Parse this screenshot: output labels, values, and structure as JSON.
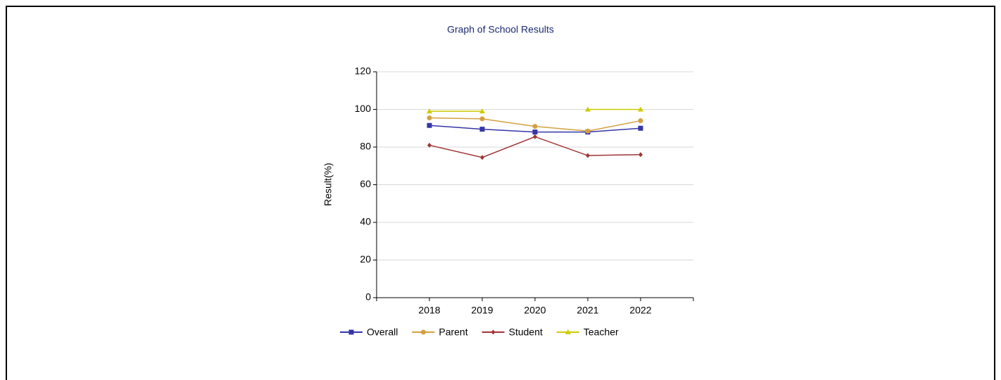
{
  "chart_data": {
    "type": "line",
    "title": "Graph of School Results",
    "y_label": "Result(%)",
    "x": [
      2018,
      2019,
      2020,
      2021,
      2022
    ],
    "xlim": [
      2017,
      2023
    ],
    "xticks": [
      2018,
      2019,
      2020,
      2021,
      2022
    ],
    "ylim": [
      0,
      120
    ],
    "yticks": [
      0,
      20,
      40,
      60,
      80,
      100,
      120
    ],
    "grid": true,
    "legend": "bottom",
    "series": [
      {
        "name": "Overall",
        "color": "#3535a8",
        "values": [
          91.5,
          89.5,
          88,
          88,
          90
        ]
      },
      {
        "name": "Parent",
        "color": "#d4a040",
        "values": [
          95.5,
          95,
          91,
          88.5,
          94
        ]
      },
      {
        "name": "Student",
        "color": "#a03535",
        "values": [
          81,
          74.5,
          85.5,
          75.5,
          76
        ]
      },
      {
        "name": "Teacher",
        "color": "#cccc00",
        "values": [
          99,
          99,
          null,
          100,
          100
        ]
      }
    ]
  }
}
